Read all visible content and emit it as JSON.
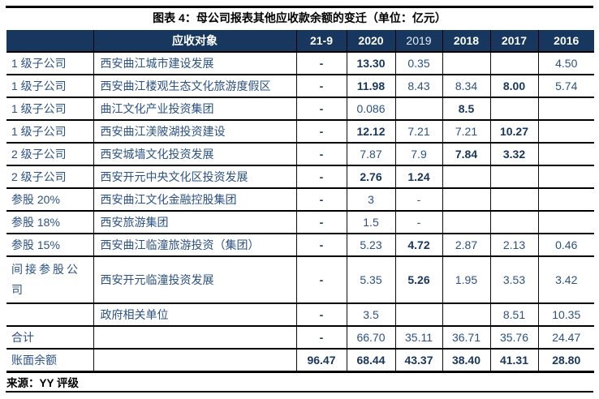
{
  "title": "图表 4：母公司报表其他应收款余额的变迁（单位：亿元）",
  "source": "来源：YY 评级",
  "colors": {
    "header_bg": "#17375E",
    "header_text": "#FFFFFF",
    "body_text": "#2B5186",
    "bold_text": "#17365D",
    "rule": "#000000",
    "title_text": "#000000"
  },
  "table": {
    "object_header": "应收对象",
    "year_columns": [
      {
        "label": "21-9",
        "bold": true
      },
      {
        "label": "2020",
        "bold": true
      },
      {
        "label": "2019",
        "bold": false
      },
      {
        "label": "2018",
        "bold": true
      },
      {
        "label": "2017",
        "bold": true
      },
      {
        "label": "2016",
        "bold": true
      }
    ],
    "rows": [
      {
        "category": "1 级子公司",
        "name": "西安曲江城市建设发展",
        "values": [
          "-",
          "13.30",
          "0.35",
          "",
          "",
          "4.50"
        ],
        "bold": [
          true,
          true,
          false,
          false,
          false,
          false
        ]
      },
      {
        "category": "1 级子公司",
        "name": "西安曲江楼观生态文化旅游度假区",
        "values": [
          "-",
          "11.98",
          "8.43",
          "8.34",
          "8.00",
          "5.74"
        ],
        "bold": [
          true,
          true,
          false,
          false,
          true,
          false
        ]
      },
      {
        "category": "1 级子公司",
        "name": "曲江文化产业投资集团",
        "values": [
          "-",
          "0.086",
          "",
          "8.5",
          "",
          ""
        ],
        "bold": [
          true,
          false,
          false,
          true,
          false,
          false
        ]
      },
      {
        "category": "1 级子公司",
        "name": "西安曲江渼陂湖投资建设",
        "values": [
          "-",
          "12.12",
          "7.21",
          "7.21",
          "10.27",
          ""
        ],
        "bold": [
          true,
          true,
          false,
          false,
          true,
          false
        ]
      },
      {
        "category": "2 级子公司",
        "name": "西安城墙文化投资发展",
        "values": [
          "-",
          "7.87",
          "7.9",
          "7.84",
          "3.32",
          ""
        ],
        "bold": [
          true,
          false,
          false,
          true,
          true,
          false
        ]
      },
      {
        "category": "2 级子公司",
        "name": "西安开元中央文化区投资发展",
        "values": [
          "-",
          "2.76",
          "1.24",
          "",
          "",
          ""
        ],
        "bold": [
          true,
          true,
          true,
          false,
          false,
          false
        ]
      },
      {
        "category": "参股 20%",
        "name": "西安曲江文化金融控股集团",
        "values": [
          "-",
          "3",
          "-",
          "",
          "",
          ""
        ],
        "bold": [
          true,
          false,
          false,
          false,
          false,
          false
        ]
      },
      {
        "category": "参股 18%",
        "name": "西安旅游集团",
        "values": [
          "-",
          "1.5",
          "-",
          "",
          "",
          ""
        ],
        "bold": [
          true,
          false,
          false,
          false,
          false,
          false
        ]
      },
      {
        "category": "参股 15%",
        "name": "西安曲江临潼旅游投资（集团）",
        "values": [
          "-",
          "5.23",
          "4.72",
          "2.87",
          "2.13",
          "0.46"
        ],
        "bold": [
          true,
          false,
          true,
          false,
          false,
          false
        ]
      },
      {
        "category": "间接参股公司",
        "name": "西安开元临潼投资发展",
        "tall": true,
        "values": [
          "-",
          "5.35",
          "5.26",
          "1.95",
          "3.53",
          "3.42"
        ],
        "bold": [
          true,
          false,
          true,
          false,
          false,
          false
        ]
      },
      {
        "category": "",
        "name": "政府相关单位",
        "values": [
          "-",
          "3.5",
          "",
          "",
          "8.51",
          "10.35"
        ],
        "bold": [
          true,
          false,
          false,
          false,
          false,
          false
        ]
      },
      {
        "category": "合计",
        "name": "",
        "values": [
          "-",
          "66.70",
          "35.11",
          "36.71",
          "35.76",
          "24.47"
        ],
        "bold": [
          true,
          false,
          false,
          false,
          false,
          false
        ]
      },
      {
        "category": "账面余额",
        "name": "",
        "values": [
          "96.47",
          "68.44",
          "43.37",
          "38.40",
          "41.31",
          "28.80"
        ],
        "bold": [
          true,
          true,
          true,
          true,
          true,
          true
        ]
      }
    ]
  }
}
